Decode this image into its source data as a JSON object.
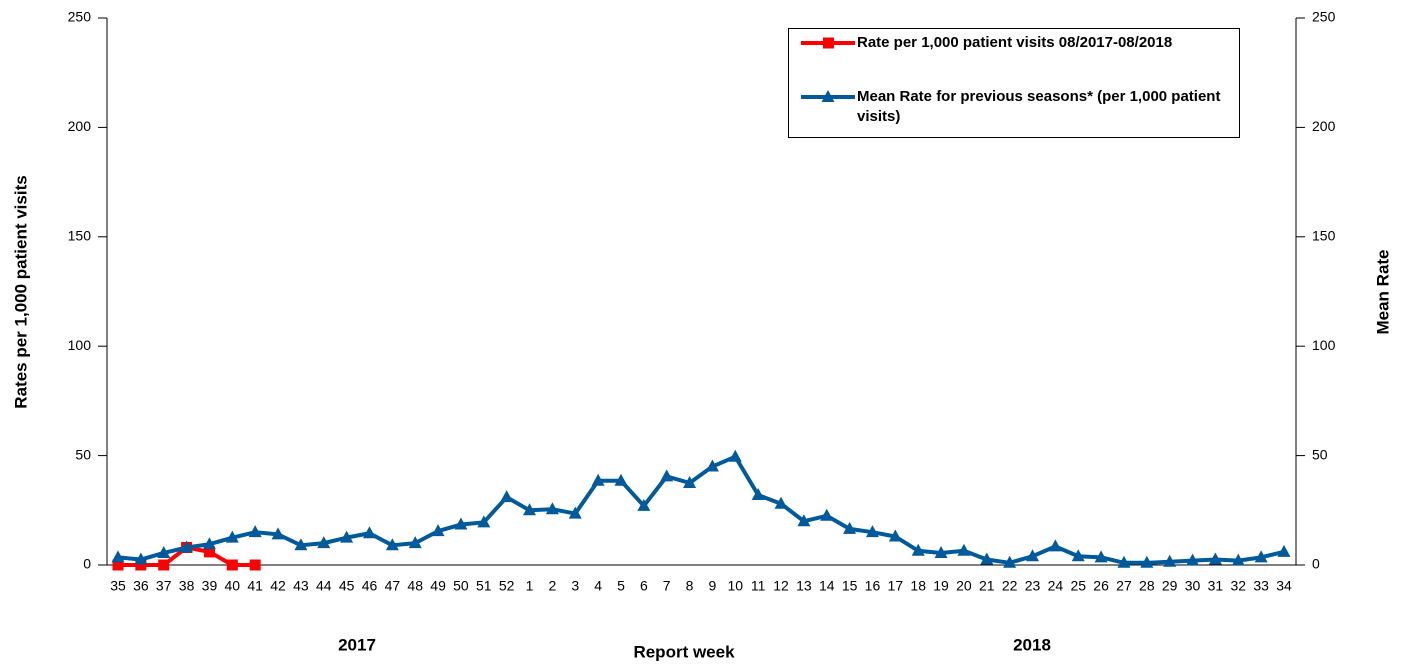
{
  "chart_data": {
    "type": "line",
    "y_label": "Rates per 1,000 patient visits",
    "y2_label": "Mean Rate",
    "x_label": "Report week",
    "annotations": [
      "2017",
      "2018"
    ],
    "categories": [
      "35",
      "36",
      "37",
      "38",
      "39",
      "40",
      "41",
      "42",
      "43",
      "44",
      "45",
      "46",
      "47",
      "48",
      "49",
      "50",
      "51",
      "52",
      "1",
      "2",
      "3",
      "4",
      "5",
      "6",
      "7",
      "8",
      "9",
      "10",
      "11",
      "12",
      "13",
      "14",
      "15",
      "16",
      "17",
      "18",
      "19",
      "20",
      "21",
      "22",
      "23",
      "24",
      "25",
      "26",
      "27",
      "28",
      "29",
      "30",
      "31",
      "32",
      "33",
      "34"
    ],
    "series": [
      {
        "name": "Rate per 1,000 patient visits 08/2017-08/2018",
        "color": "#ff0000",
        "marker": "square",
        "values": [
          0,
          0,
          0,
          8,
          6,
          0,
          0,
          null,
          null,
          null,
          null,
          null,
          null,
          null,
          null,
          null,
          null,
          null,
          null,
          null,
          null,
          null,
          null,
          null,
          null,
          null,
          null,
          null,
          null,
          null,
          null,
          null,
          null,
          null,
          null,
          null,
          null,
          null,
          null,
          null,
          null,
          null,
          null,
          null,
          null,
          null,
          null,
          null,
          null,
          null,
          null,
          null
        ]
      },
      {
        "name": "Mean Rate for previous seasons* (per 1,000 patient visits)",
        "color": "#005a9c",
        "marker": "triangle",
        "axis": "y2",
        "values": [
          3.5,
          2.5,
          5.5,
          8,
          9.5,
          12.5,
          15,
          14,
          9,
          10,
          12.5,
          14.5,
          9,
          10,
          15.5,
          18.5,
          19.5,
          31,
          25,
          25.5,
          23.5,
          38.5,
          38.5,
          27,
          40.5,
          37.5,
          45,
          49.5,
          32,
          28,
          20,
          22.5,
          16.5,
          15,
          13,
          6.5,
          5.5,
          6.5,
          2.5,
          1,
          4,
          8.5,
          4,
          3.5,
          1,
          1,
          1.5,
          2,
          2.5,
          2,
          3.5,
          6
        ]
      }
    ],
    "ylim": [
      0,
      250
    ],
    "yticks": [
      0,
      50,
      100,
      150,
      200,
      250
    ],
    "y2lim": [
      0,
      250
    ],
    "y2ticks": [
      0,
      50,
      100,
      150,
      200,
      250
    ],
    "legend": "top-right"
  }
}
